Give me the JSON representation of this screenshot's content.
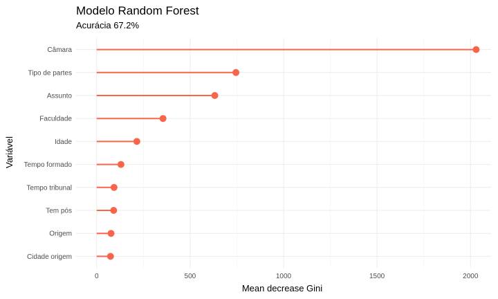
{
  "chart_data": {
    "type": "lollipop",
    "title": "Modelo Random Forest",
    "subtitle": "Acurácia 67.2%",
    "xlabel": "Mean decrease Gini",
    "ylabel": "Variável",
    "categories": [
      "Câmara",
      "Tipo de partes",
      "Assunto",
      "Faculdade",
      "Idade",
      "Tempo formado",
      "Tempo tribunal",
      "Tem pós",
      "Origem",
      "Cidade origem"
    ],
    "values": [
      2030,
      745,
      632,
      355,
      215,
      130,
      93,
      91,
      77,
      74
    ],
    "xlim": [
      -110,
      2110
    ],
    "xticks": [
      0,
      500,
      1000,
      1500,
      2000
    ],
    "grid": true,
    "color": "#f8654a"
  }
}
